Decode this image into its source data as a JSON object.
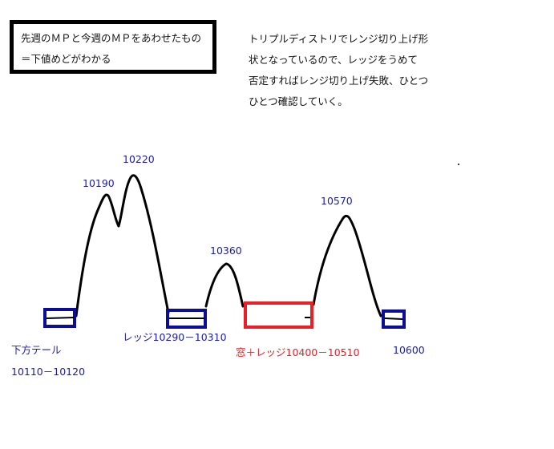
{
  "note_box": {
    "line1": "先週のＭＰと今週のＭＰをあわせたもの",
    "line2": "＝下値めどがわかる"
  },
  "explanation": {
    "lines": [
      "トリプルディストリでレンジ切り上げ形",
      "状となっているので、レッジをうめて",
      "否定すればレンジ切り上げ失敗、ひとつ",
      "ひとつ確認していく。"
    ]
  },
  "peaks": {
    "p1": "10190",
    "p2": "10220",
    "p3": "10360",
    "p4": "10570"
  },
  "zones": {
    "lower_tail_label": "下方テール",
    "lower_tail_range": "10110－10120",
    "ledge": "レッジ10290－10310",
    "window_ledge": "窓＋レッジ10400－10510",
    "right": "10600"
  },
  "colors": {
    "line": "#000000",
    "box_blue": "#0c0c96",
    "box_red": "#e8202a",
    "label_blue": "#1c1ca8"
  }
}
